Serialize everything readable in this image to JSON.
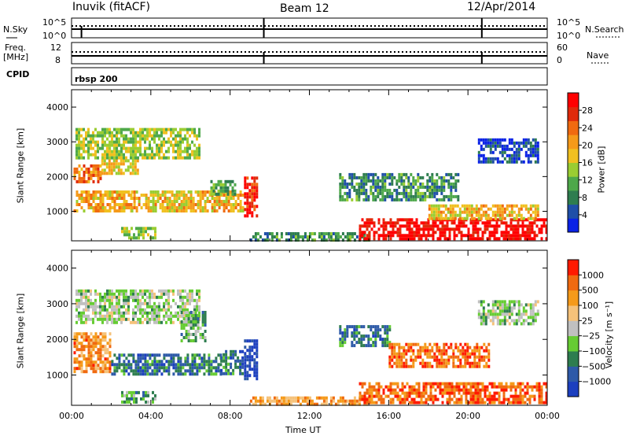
{
  "header": {
    "station": "Inuvik (fitACF)",
    "beam": "Beam 12",
    "date": "12/Apr/2014"
  },
  "top_panels": {
    "nsky_label": "N.Sky",
    "nsky_ticks": [
      "10^5",
      "10^0"
    ],
    "nsearch_label": "N.Search",
    "nsearch_ticks": [
      "10^5",
      "10^0"
    ],
    "freq_label_1": "Freq.",
    "freq_label_2": "[MHz]",
    "freq_ticks": [
      "12",
      "8"
    ],
    "nave_label": "Nave",
    "nave_ticks": [
      "60",
      "0"
    ],
    "cpid_label": "CPID",
    "cpid_value": "rbsp 200"
  },
  "chart_data": [
    {
      "type": "heatmap",
      "name": "power",
      "ylabel": "Slant Range [km]",
      "yticks": [
        "1000",
        "2000",
        "3000",
        "4000"
      ],
      "ylim": [
        150,
        4500
      ],
      "colorbar_label": "Power [dB]",
      "colorbar_ticks": [
        "4",
        "8",
        "12",
        "16",
        "20",
        "24",
        "28"
      ],
      "colors": [
        "#0a22e6",
        "#1f4fa8",
        "#2e7d4f",
        "#4ea84a",
        "#9acd32",
        "#f0c020",
        "#f59a1a",
        "#f06a10",
        "#e02a0a",
        "#ff0000"
      ],
      "regions": [
        {
          "x0": 0.1,
          "x1": 3.0,
          "y0": 1050,
          "y1": 1600,
          "level": 0.62
        },
        {
          "x0": 0.1,
          "x1": 1.5,
          "y0": 1850,
          "y1": 2350,
          "level": 0.72
        },
        {
          "x0": 1.5,
          "x1": 3.4,
          "y0": 2100,
          "y1": 2500,
          "level": 0.55
        },
        {
          "x0": 0.2,
          "x1": 6.5,
          "y0": 2550,
          "y1": 3400,
          "level": 0.45
        },
        {
          "x0": 3.0,
          "x1": 8.6,
          "y0": 1050,
          "y1": 1600,
          "level": 0.58
        },
        {
          "x0": 8.7,
          "x1": 9.4,
          "y0": 900,
          "y1": 2000,
          "level": 0.85
        },
        {
          "x0": 7.0,
          "x1": 8.2,
          "y0": 1500,
          "y1": 1900,
          "level": 0.35
        },
        {
          "x0": 2.5,
          "x1": 4.2,
          "y0": 250,
          "y1": 550,
          "level": 0.45
        },
        {
          "x0": 9.0,
          "x1": 15.0,
          "y0": 200,
          "y1": 400,
          "level": 0.3
        },
        {
          "x0": 14.5,
          "x1": 24.0,
          "y0": 200,
          "y1": 800,
          "level": 0.95
        },
        {
          "x0": 13.5,
          "x1": 19.5,
          "y0": 1300,
          "y1": 2100,
          "level": 0.28
        },
        {
          "x0": 18.0,
          "x1": 23.5,
          "y0": 800,
          "y1": 1200,
          "level": 0.6
        },
        {
          "x0": 20.5,
          "x1": 23.5,
          "y0": 2400,
          "y1": 3100,
          "level": 0.12
        }
      ]
    },
    {
      "type": "heatmap",
      "name": "velocity",
      "ylabel": "Slant Range [km]",
      "yticks": [
        "1000",
        "2000",
        "3000",
        "4000"
      ],
      "ylim": [
        150,
        4500
      ],
      "colorbar_label": "Velocity [m s⁻¹]",
      "colorbar_ticks": [
        "1000",
        "500",
        "100",
        "25",
        "−25",
        "−100",
        "−500",
        "−1000"
      ],
      "colors": [
        "#1c3fbf",
        "#2e5aa8",
        "#2e7d4f",
        "#66cc33",
        "#c0c0c0",
        "#f5c27a",
        "#f59a1a",
        "#f06a10",
        "#ff1a00"
      ],
      "regions": [
        {
          "x0": 0.1,
          "x1": 2.0,
          "y0": 1100,
          "y1": 2200,
          "level": 0.75
        },
        {
          "x0": 2.0,
          "x1": 7.5,
          "y0": 1000,
          "y1": 1600,
          "level": 0.22
        },
        {
          "x0": 0.2,
          "x1": 6.5,
          "y0": 2500,
          "y1": 3400,
          "level": 0.45
        },
        {
          "x0": 5.5,
          "x1": 6.8,
          "y0": 2000,
          "y1": 2800,
          "level": 0.35
        },
        {
          "x0": 7.5,
          "x1": 8.6,
          "y0": 1000,
          "y1": 1700,
          "level": 0.22
        },
        {
          "x0": 8.7,
          "x1": 9.4,
          "y0": 900,
          "y1": 2000,
          "level": 0.02
        },
        {
          "x0": 2.5,
          "x1": 4.2,
          "y0": 250,
          "y1": 550,
          "level": 0.35
        },
        {
          "x0": 9.0,
          "x1": 15.0,
          "y0": 200,
          "y1": 400,
          "level": 0.7
        },
        {
          "x0": 14.5,
          "x1": 24.0,
          "y0": 200,
          "y1": 800,
          "level": 0.85
        },
        {
          "x0": 13.5,
          "x1": 16.0,
          "y0": 1800,
          "y1": 2400,
          "level": 0.25
        },
        {
          "x0": 16.0,
          "x1": 21.0,
          "y0": 1200,
          "y1": 1900,
          "level": 0.82
        },
        {
          "x0": 20.5,
          "x1": 23.5,
          "y0": 2400,
          "y1": 3100,
          "level": 0.45
        }
      ]
    }
  ],
  "x_axis": {
    "label": "Time UT",
    "ticks": [
      "00:00",
      "04:00",
      "08:00",
      "12:00",
      "16:00",
      "20:00",
      "00:00"
    ],
    "xlim": [
      0,
      24
    ]
  }
}
